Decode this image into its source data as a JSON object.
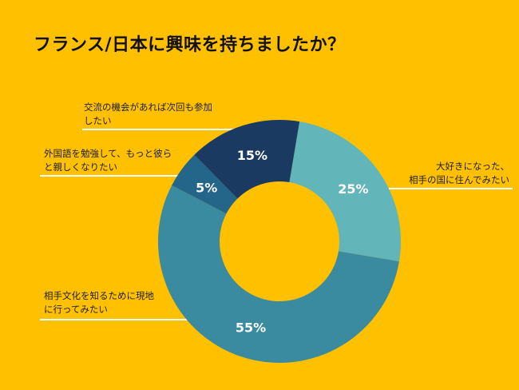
{
  "chart_data": {
    "type": "pie",
    "donut": true,
    "title": "フランス/日本に興味を持ちましたか？",
    "slices": [
      {
        "label": "大好きになった、相手の国に住んでみたい",
        "label_lines": [
          "大好きになった、",
          "相手の国に住んでみたい"
        ],
        "value": 25,
        "value_label": "25%",
        "color": "#62b5b9"
      },
      {
        "label": "相手文化を知るために現地に行ってみたい",
        "label_lines": [
          "相手文化を知るために現地",
          "に行ってみたい"
        ],
        "value": 55,
        "value_label": "55%",
        "color": "#3a8aa0"
      },
      {
        "label": "外国語を勉強して、もっと彼らと親しくなりたい",
        "label_lines": [
          "外国語を勉強して、もっと彼ら",
          "と親しくなりたい"
        ],
        "value": 5,
        "value_label": "5%",
        "color": "#23668a"
      },
      {
        "label": "交流の機会があれば次回も参加したい",
        "label_lines": [
          "交流の機会があれば次回も参加",
          "したい"
        ],
        "value": 15,
        "value_label": "15%",
        "color": "#1b3a62"
      }
    ],
    "start_angle_deg": 9.5
  }
}
